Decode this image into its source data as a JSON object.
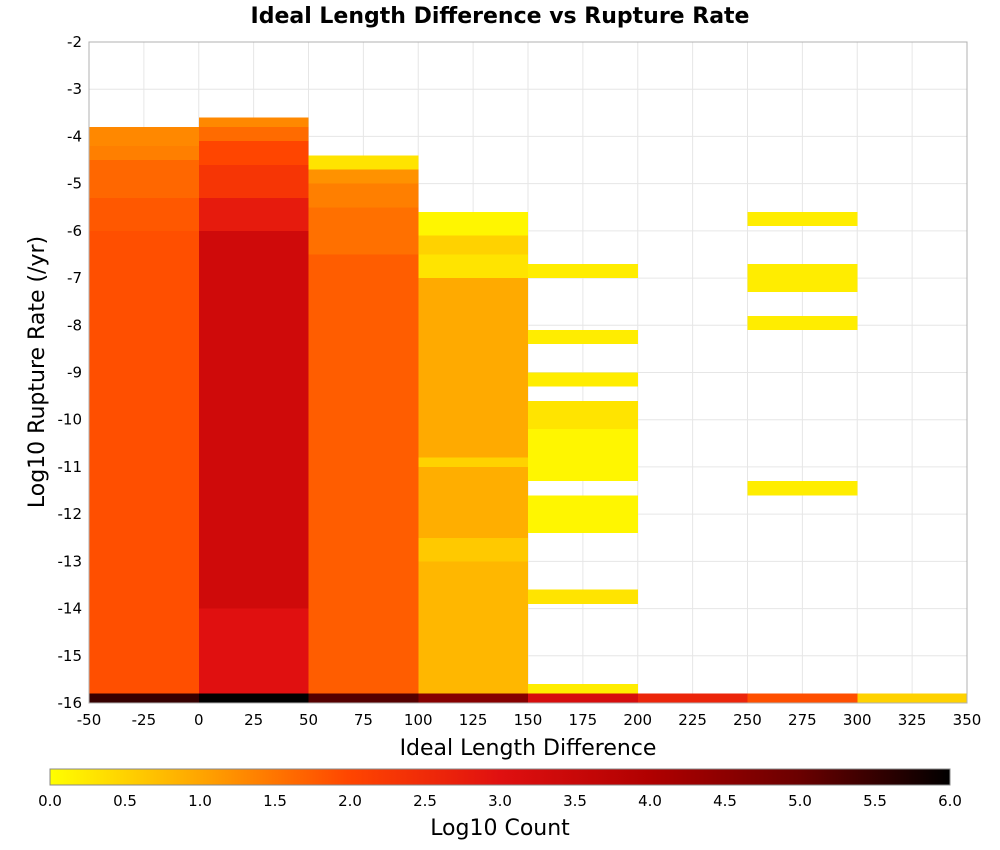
{
  "chart_data": {
    "type": "heatmap",
    "title": "Ideal Length Difference vs Rupture Rate",
    "xlabel": "Ideal Length Difference",
    "ylabel": "Log10 Rupture Rate (/yr)",
    "xlim": [
      -50,
      350
    ],
    "ylim": [
      -16,
      -2
    ],
    "x_ticks": [
      -50,
      -25,
      0,
      25,
      50,
      75,
      100,
      125,
      150,
      175,
      200,
      225,
      250,
      275,
      300,
      325,
      350
    ],
    "y_ticks": [
      -2,
      -3,
      -4,
      -5,
      -6,
      -7,
      -8,
      -9,
      -10,
      -11,
      -12,
      -13,
      -14,
      -15,
      -16
    ],
    "grid": true,
    "colorbar": {
      "label": "Log10 Count",
      "min": 0.0,
      "max": 6.0,
      "ticks": [
        "0.0",
        "0.5",
        "1.0",
        "1.5",
        "2.0",
        "2.5",
        "3.0",
        "3.5",
        "4.0",
        "4.5",
        "5.0",
        "5.5",
        "6.0"
      ],
      "colors": [
        "#ffff00",
        "#ffa500",
        "#ff4500",
        "#e01010",
        "#b00000",
        "#6a0000",
        "#000000"
      ]
    },
    "cells": [
      {
        "x0": -50,
        "x1": 0,
        "y0": -4.2,
        "y1": -3.8,
        "value": 1.3
      },
      {
        "x0": -50,
        "x1": 0,
        "y0": -4.5,
        "y1": -4.2,
        "value": 1.4
      },
      {
        "x0": -50,
        "x1": 0,
        "y0": -5.3,
        "y1": -4.5,
        "value": 1.65
      },
      {
        "x0": -50,
        "x1": 0,
        "y0": -6.0,
        "y1": -5.3,
        "value": 1.8
      },
      {
        "x0": -50,
        "x1": 0,
        "y0": -15.8,
        "y1": -6.0,
        "value": 1.9
      },
      {
        "x0": -50,
        "x1": 0,
        "y0": -16.0,
        "y1": -15.8,
        "value": 5.5
      },
      {
        "x0": 0,
        "x1": 50,
        "y0": -3.8,
        "y1": -3.6,
        "value": 1.3
      },
      {
        "x0": 0,
        "x1": 50,
        "y0": -4.1,
        "y1": -3.8,
        "value": 1.6
      },
      {
        "x0": 0,
        "x1": 50,
        "y0": -4.6,
        "y1": -4.1,
        "value": 2.0
      },
      {
        "x0": 0,
        "x1": 50,
        "y0": -5.3,
        "y1": -4.6,
        "value": 2.3
      },
      {
        "x0": 0,
        "x1": 50,
        "y0": -6.0,
        "y1": -5.3,
        "value": 2.8
      },
      {
        "x0": 0,
        "x1": 50,
        "y0": -14.0,
        "y1": -6.0,
        "value": 3.35
      },
      {
        "x0": 0,
        "x1": 50,
        "y0": -15.8,
        "y1": -14.0,
        "value": 3.0
      },
      {
        "x0": 0,
        "x1": 50,
        "y0": -16.0,
        "y1": -15.8,
        "value": 6.0
      },
      {
        "x0": 50,
        "x1": 100,
        "y0": -4.7,
        "y1": -4.4,
        "value": 0.3
      },
      {
        "x0": 50,
        "x1": 100,
        "y0": -5.0,
        "y1": -4.7,
        "value": 1.2
      },
      {
        "x0": 50,
        "x1": 100,
        "y0": -5.5,
        "y1": -5.0,
        "value": 1.4
      },
      {
        "x0": 50,
        "x1": 100,
        "y0": -6.5,
        "y1": -5.5,
        "value": 1.55
      },
      {
        "x0": 50,
        "x1": 100,
        "y0": -15.8,
        "y1": -6.5,
        "value": 1.75
      },
      {
        "x0": 50,
        "x1": 100,
        "y0": -16.0,
        "y1": -15.8,
        "value": 5.2
      },
      {
        "x0": 100,
        "x1": 150,
        "y0": -6.1,
        "y1": -5.6,
        "value": 0.1
      },
      {
        "x0": 100,
        "x1": 150,
        "y0": -6.5,
        "y1": -6.1,
        "value": 0.5
      },
      {
        "x0": 100,
        "x1": 150,
        "y0": -7.0,
        "y1": -6.5,
        "value": 0.3
      },
      {
        "x0": 100,
        "x1": 150,
        "y0": -10.8,
        "y1": -7.0,
        "value": 0.95
      },
      {
        "x0": 100,
        "x1": 150,
        "y0": -11.0,
        "y1": -10.8,
        "value": 0.5
      },
      {
        "x0": 100,
        "x1": 150,
        "y0": -12.5,
        "y1": -11.0,
        "value": 0.9
      },
      {
        "x0": 100,
        "x1": 150,
        "y0": -13.0,
        "y1": -12.5,
        "value": 0.6
      },
      {
        "x0": 100,
        "x1": 150,
        "y0": -15.8,
        "y1": -13.0,
        "value": 0.8
      },
      {
        "x0": 100,
        "x1": 150,
        "y0": -16.0,
        "y1": -15.8,
        "value": 4.6
      },
      {
        "x0": 150,
        "x1": 200,
        "y0": -7.0,
        "y1": -6.7,
        "value": 0.2
      },
      {
        "x0": 150,
        "x1": 200,
        "y0": -8.4,
        "y1": -8.1,
        "value": 0.2
      },
      {
        "x0": 150,
        "x1": 200,
        "y0": -9.3,
        "y1": -9.0,
        "value": 0.2
      },
      {
        "x0": 150,
        "x1": 200,
        "y0": -10.2,
        "y1": -9.6,
        "value": 0.3
      },
      {
        "x0": 150,
        "x1": 200,
        "y0": -11.3,
        "y1": -10.2,
        "value": 0.1
      },
      {
        "x0": 150,
        "x1": 200,
        "y0": -12.4,
        "y1": -11.6,
        "value": 0.1
      },
      {
        "x0": 150,
        "x1": 200,
        "y0": -13.9,
        "y1": -13.6,
        "value": 0.3
      },
      {
        "x0": 150,
        "x1": 200,
        "y0": -15.8,
        "y1": -15.6,
        "value": 0.2
      },
      {
        "x0": 150,
        "x1": 200,
        "y0": -16.0,
        "y1": -15.8,
        "value": 3.2
      },
      {
        "x0": 200,
        "x1": 250,
        "y0": -16.0,
        "y1": -15.8,
        "value": 2.6
      },
      {
        "x0": 250,
        "x1": 300,
        "y0": -5.9,
        "y1": -5.6,
        "value": 0.2
      },
      {
        "x0": 250,
        "x1": 300,
        "y0": -7.3,
        "y1": -6.7,
        "value": 0.2
      },
      {
        "x0": 250,
        "x1": 300,
        "y0": -8.1,
        "y1": -7.8,
        "value": 0.2
      },
      {
        "x0": 250,
        "x1": 300,
        "y0": -11.6,
        "y1": -11.3,
        "value": 0.2
      },
      {
        "x0": 250,
        "x1": 300,
        "y0": -16.0,
        "y1": -15.8,
        "value": 1.9
      },
      {
        "x0": 300,
        "x1": 350,
        "y0": -16.0,
        "y1": -15.8,
        "value": 0.5
      }
    ]
  }
}
